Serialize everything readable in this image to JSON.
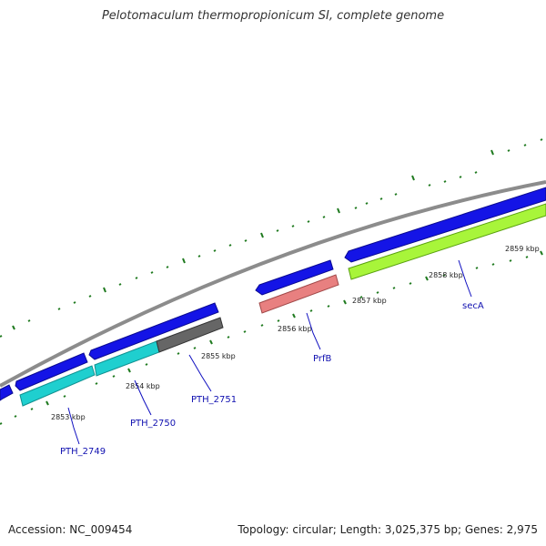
{
  "title": "Pelotomaculum thermopropionicum SI, complete genome",
  "footer": {
    "accession": "Accession: NC_009454",
    "summary": "Topology: circular; Length: 3,025,375 bp; Genes: 2,975"
  },
  "kbp_labels": [
    "2853 kbp",
    "2854 kbp",
    "2855 kbp",
    "2856 kbp",
    "2857 kbp",
    "2858 kbp",
    "2859 kbp"
  ],
  "gene_labels": [
    "PTH_2749",
    "PTH_2750",
    "PTH_2751",
    "PrfB",
    "secA"
  ],
  "colors": {
    "backbone": "#8c8c8c",
    "cds_blue": "#1414e6",
    "cds_cyan": "#1fcfcf",
    "gene_gray": "#666666",
    "gene_pink": "#e88080",
    "gene_green": "#a8f53a",
    "tick": "#1f7a1f",
    "label_line": "#1010c0"
  }
}
